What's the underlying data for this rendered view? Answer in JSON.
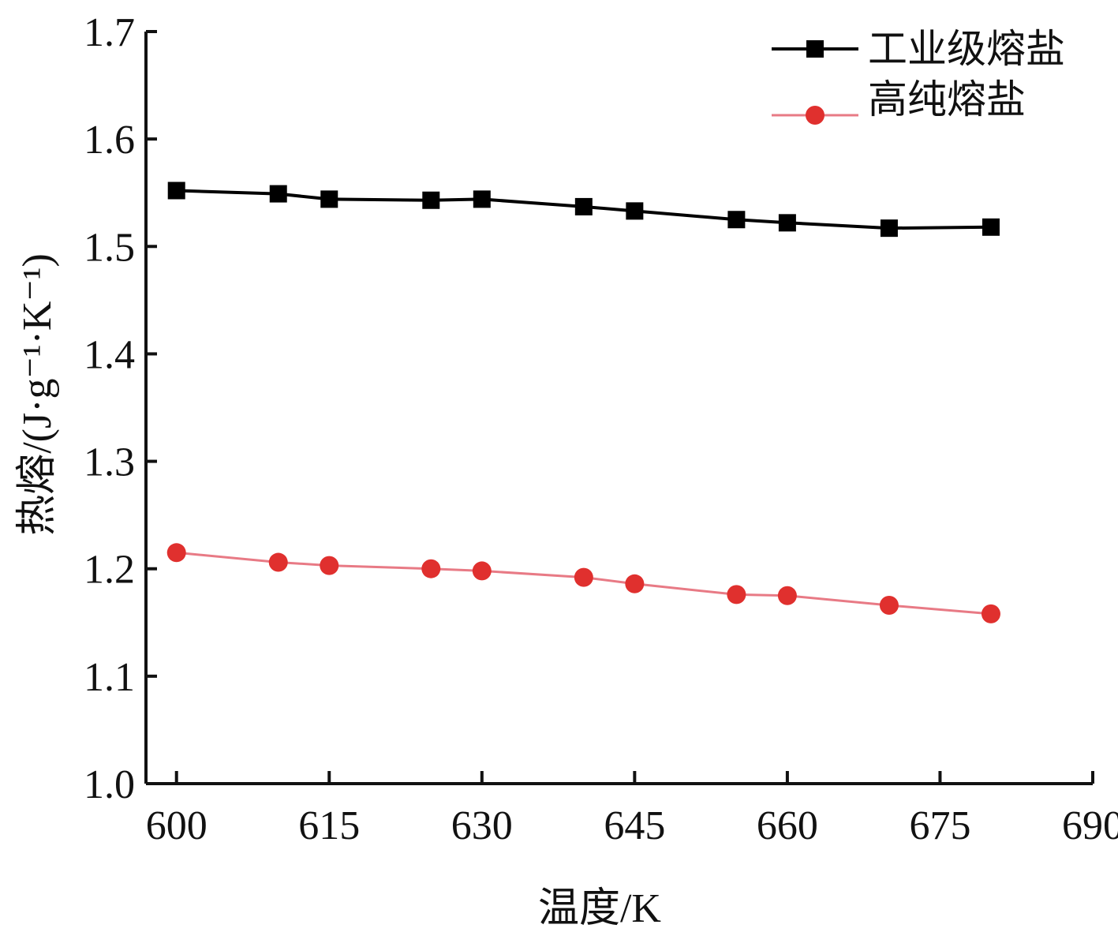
{
  "chart_data": {
    "type": "line",
    "xlabel": "温度/K",
    "ylabel": "热熔/(J·g⁻¹·K⁻¹)",
    "xlim": [
      597,
      690
    ],
    "ylim": [
      1.0,
      1.7
    ],
    "xticks": [
      600,
      615,
      630,
      645,
      660,
      675,
      690
    ],
    "yticks": [
      1.0,
      1.1,
      1.2,
      1.3,
      1.4,
      1.5,
      1.6,
      1.7
    ],
    "xtick_labels": [
      "600",
      "615",
      "630",
      "645",
      "660",
      "675",
      "690"
    ],
    "ytick_labels": [
      "1.0",
      "1.1",
      "1.2",
      "1.3",
      "1.4",
      "1.5",
      "1.6",
      "1.7"
    ],
    "grid": false,
    "legend_position": "top-right",
    "x": [
      600,
      610,
      615,
      625,
      630,
      640,
      645,
      655,
      660,
      670,
      680
    ],
    "series": [
      {
        "name": "工业级熔盐",
        "color": "#000000",
        "marker": "square",
        "values": [
          1.552,
          1.549,
          1.544,
          1.543,
          1.544,
          1.537,
          1.533,
          1.525,
          1.522,
          1.517,
          1.518
        ]
      },
      {
        "name": "高纯熔盐",
        "color": "#e0302e",
        "line_color": "#e87a85",
        "marker": "circle",
        "values": [
          1.215,
          1.206,
          1.203,
          1.2,
          1.198,
          1.192,
          1.186,
          1.176,
          1.175,
          1.166,
          1.158
        ]
      }
    ]
  }
}
